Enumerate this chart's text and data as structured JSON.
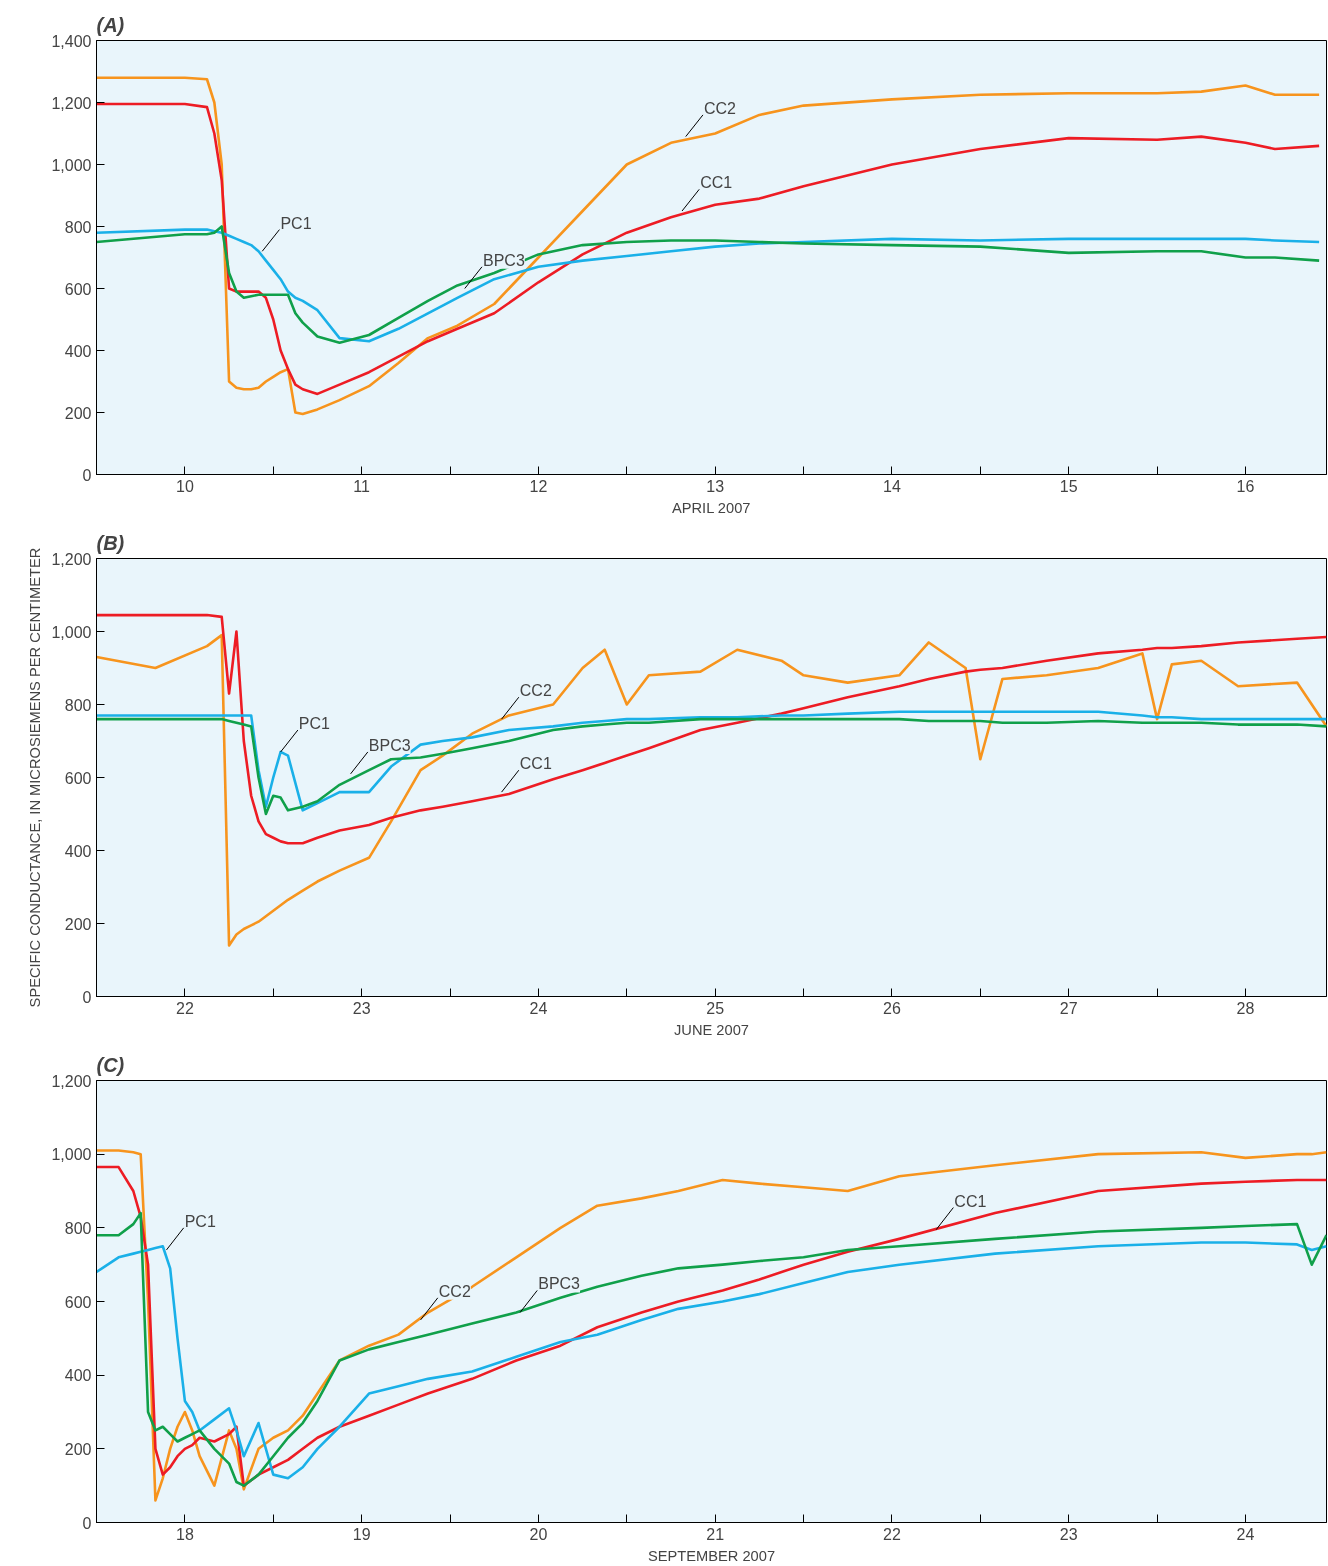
{
  "chart_data": [
    {
      "type": "line",
      "title": "(A)",
      "xlabel": "APRIL 2007",
      "grid": false,
      "xlim": [
        "2007-04-10T00:00",
        "2007-04-16T23:00"
      ],
      "xticks": [
        {
          "value": "2007-04-10T00:00",
          "label": null
        },
        {
          "value": "2007-04-10T12:00",
          "label": "10"
        },
        {
          "value": "2007-04-11T00:00",
          "label": null
        },
        {
          "value": "2007-04-11T12:00",
          "label": "11"
        },
        {
          "value": "2007-04-12T00:00",
          "label": null
        },
        {
          "value": "2007-04-12T12:00",
          "label": "12"
        },
        {
          "value": "2007-04-13T00:00",
          "label": null
        },
        {
          "value": "2007-04-13T12:00",
          "label": "13"
        },
        {
          "value": "2007-04-14T00:00",
          "label": null
        },
        {
          "value": "2007-04-14T12:00",
          "label": "14"
        },
        {
          "value": "2007-04-15T00:00",
          "label": null
        },
        {
          "value": "2007-04-15T12:00",
          "label": "15"
        },
        {
          "value": "2007-04-16T00:00",
          "label": null
        },
        {
          "value": "2007-04-16T12:00",
          "label": "16"
        }
      ],
      "ylim": [
        0,
        1400
      ],
      "yticks": [
        0,
        200,
        400,
        600,
        800,
        {
          "value": 1000,
          "label": "1,000"
        },
        {
          "value": 1200,
          "label": "1,200"
        },
        {
          "value": 1400,
          "label": "1,400"
        }
      ],
      "x": [
        "2007-04-10T00:00",
        "2007-04-10T12:00",
        "2007-04-10T15:00",
        "2007-04-10T16:00",
        "2007-04-10T17:00",
        "2007-04-10T18:00",
        "2007-04-10T19:00",
        "2007-04-10T20:00",
        "2007-04-10T21:00",
        "2007-04-10T22:00",
        "2007-04-10T23:00",
        "2007-04-11T00:00",
        "2007-04-11T01:00",
        "2007-04-11T02:00",
        "2007-04-11T03:00",
        "2007-04-11T04:00",
        "2007-04-11T06:00",
        "2007-04-11T09:00",
        "2007-04-11T13:00",
        "2007-04-11T17:00",
        "2007-04-11T21:00",
        "2007-04-12T01:00",
        "2007-04-12T06:00",
        "2007-04-12T12:00",
        "2007-04-12T18:00",
        "2007-04-13T00:00",
        "2007-04-13T06:00",
        "2007-04-13T12:00",
        "2007-04-13T18:00",
        "2007-04-14T00:00",
        "2007-04-14T12:00",
        "2007-04-15T00:00",
        "2007-04-15T12:00",
        "2007-04-16T00:00",
        "2007-04-16T06:00",
        "2007-04-16T12:00",
        "2007-04-16T16:00",
        "2007-04-16T22:00"
      ],
      "series": [
        {
          "color": "#f7941d",
          "values": [
            1280,
            1280,
            1275,
            1200,
            1000,
            300,
            280,
            275,
            275,
            280,
            300,
            315,
            330,
            340,
            200,
            195,
            210,
            240,
            285,
            360,
            440,
            480,
            550,
            700,
            850,
            1000,
            1070,
            1100,
            1160,
            1190,
            1210,
            1225,
            1230,
            1230,
            1235,
            1255,
            1225,
            1225
          ]
        },
        {
          "color": "#ed1c24",
          "values": [
            1195,
            1195,
            1185,
            1100,
            950,
            600,
            590,
            590,
            590,
            590,
            570,
            500,
            400,
            340,
            290,
            275,
            260,
            290,
            330,
            380,
            430,
            470,
            520,
            620,
            710,
            780,
            830,
            870,
            890,
            930,
            1000,
            1050,
            1085,
            1080,
            1090,
            1070,
            1050,
            1060
          ]
        },
        {
          "color": "#1ab0e8",
          "values": [
            780,
            790,
            790,
            785,
            780,
            770,
            760,
            750,
            740,
            720,
            690,
            660,
            630,
            590,
            570,
            560,
            530,
            440,
            430,
            470,
            520,
            570,
            630,
            670,
            690,
            705,
            720,
            735,
            745,
            750,
            760,
            755,
            760,
            760,
            760,
            760,
            755,
            750
          ]
        },
        {
          "color": "#10a04a",
          "values": [
            750,
            775,
            775,
            780,
            800,
            650,
            590,
            570,
            575,
            580,
            580,
            580,
            580,
            580,
            520,
            490,
            445,
            425,
            450,
            505,
            560,
            610,
            650,
            710,
            740,
            750,
            755,
            755,
            750,
            745,
            740,
            735,
            715,
            720,
            720,
            700,
            700,
            690
          ]
        }
      ],
      "annotations": [
        {
          "text": "PC1",
          "x": "2007-04-10T22:30",
          "y": 720
        },
        {
          "text": "BPC3",
          "x": "2007-04-12T02:00",
          "y": 600
        },
        {
          "text": "CC2",
          "x": "2007-04-13T08:00",
          "y": 1090
        },
        {
          "text": "CC1",
          "x": "2007-04-13T07:30",
          "y": 850
        }
      ]
    },
    {
      "type": "line",
      "title": "(B)",
      "xlabel": "JUNE 2007",
      "ylabel": "SPECIFIC CONDUCTANCE, IN MICROSIEMENS PER CENTIMETER",
      "grid": false,
      "xlim": [
        "2007-06-22T00:00",
        "2007-06-28T23:00"
      ],
      "xticks": [
        {
          "value": "2007-06-22T00:00",
          "label": null
        },
        {
          "value": "2007-06-22T12:00",
          "label": "22"
        },
        {
          "value": "2007-06-23T00:00",
          "label": null
        },
        {
          "value": "2007-06-23T12:00",
          "label": "23"
        },
        {
          "value": "2007-06-24T00:00",
          "label": null
        },
        {
          "value": "2007-06-24T12:00",
          "label": "24"
        },
        {
          "value": "2007-06-25T00:00",
          "label": null
        },
        {
          "value": "2007-06-25T12:00",
          "label": "25"
        },
        {
          "value": "2007-06-26T00:00",
          "label": null
        },
        {
          "value": "2007-06-26T12:00",
          "label": "26"
        },
        {
          "value": "2007-06-27T00:00",
          "label": null
        },
        {
          "value": "2007-06-27T12:00",
          "label": "27"
        },
        {
          "value": "2007-06-28T00:00",
          "label": null
        },
        {
          "value": "2007-06-28T12:00",
          "label": "28"
        }
      ],
      "ylim": [
        0,
        1200
      ],
      "yticks": [
        0,
        200,
        400,
        600,
        800,
        {
          "value": 1000,
          "label": "1,000"
        },
        {
          "value": 1200,
          "label": "1,200"
        }
      ],
      "x": [
        "2007-06-22T00:00",
        "2007-06-22T08:00",
        "2007-06-22T15:00",
        "2007-06-22T17:00",
        "2007-06-22T18:00",
        "2007-06-22T19:00",
        "2007-06-22T20:00",
        "2007-06-22T21:00",
        "2007-06-22T22:00",
        "2007-06-22T23:00",
        "2007-06-23T00:00",
        "2007-06-23T01:00",
        "2007-06-23T02:00",
        "2007-06-23T04:00",
        "2007-06-23T06:00",
        "2007-06-23T09:00",
        "2007-06-23T13:00",
        "2007-06-23T16:00",
        "2007-06-23T20:00",
        "2007-06-23T23:00",
        "2007-06-24T03:00",
        "2007-06-24T08:00",
        "2007-06-24T14:00",
        "2007-06-24T18:00",
        "2007-06-24T21:00",
        "2007-06-25T00:00",
        "2007-06-25T03:00",
        "2007-06-25T10:00",
        "2007-06-25T15:00",
        "2007-06-25T21:00",
        "2007-06-26T00:00",
        "2007-06-26T06:00",
        "2007-06-26T13:00",
        "2007-06-26T17:00",
        "2007-06-26T22:00",
        "2007-06-27T00:00",
        "2007-06-27T03:00",
        "2007-06-27T09:00",
        "2007-06-27T16:00",
        "2007-06-27T22:00",
        "2007-06-28T00:00",
        "2007-06-28T02:00",
        "2007-06-28T06:00",
        "2007-06-28T11:00",
        "2007-06-28T19:00",
        "2007-06-28T23:00"
      ],
      "series": [
        {
          "color": "#f7941d",
          "values": [
            930,
            900,
            960,
            990,
            140,
            170,
            185,
            195,
            205,
            220,
            235,
            250,
            265,
            290,
            315,
            345,
            380,
            480,
            620,
            660,
            720,
            770,
            800,
            900,
            950,
            800,
            880,
            890,
            950,
            920,
            880,
            860,
            880,
            970,
            900,
            650,
            870,
            880,
            900,
            940,
            760,
            910,
            920,
            850,
            860,
            740
          ]
        },
        {
          "color": "#ed1c24",
          "values": [
            1045,
            1045,
            1045,
            1040,
            830,
            1000,
            700,
            550,
            480,
            445,
            435,
            425,
            420,
            420,
            435,
            455,
            470,
            490,
            510,
            520,
            535,
            555,
            595,
            620,
            640,
            660,
            680,
            730,
            750,
            775,
            790,
            820,
            850,
            870,
            890,
            895,
            900,
            920,
            940,
            950,
            955,
            955,
            960,
            970,
            980,
            985
          ]
        },
        {
          "color": "#1ab0e8",
          "values": [
            770,
            770,
            770,
            770,
            770,
            770,
            770,
            770,
            620,
            520,
            600,
            670,
            660,
            510,
            530,
            560,
            560,
            630,
            690,
            700,
            710,
            730,
            740,
            750,
            755,
            760,
            760,
            765,
            765,
            770,
            770,
            775,
            780,
            780,
            780,
            780,
            780,
            780,
            780,
            770,
            765,
            765,
            760,
            760,
            760,
            760
          ]
        },
        {
          "color": "#10a04a",
          "values": [
            760,
            760,
            760,
            760,
            755,
            750,
            745,
            740,
            600,
            500,
            550,
            545,
            510,
            520,
            535,
            580,
            620,
            650,
            655,
            665,
            680,
            700,
            730,
            740,
            745,
            750,
            750,
            760,
            760,
            760,
            760,
            760,
            760,
            755,
            755,
            755,
            750,
            750,
            755,
            750,
            750,
            750,
            750,
            745,
            745,
            740
          ]
        }
      ],
      "annotations": [
        {
          "text": "PC1",
          "x": "2007-06-23T01:00",
          "y": 670
        },
        {
          "text": "BPC3",
          "x": "2007-06-23T10:30",
          "y": 610
        },
        {
          "text": "CC2",
          "x": "2007-06-24T07:00",
          "y": 760
        },
        {
          "text": "CC1",
          "x": "2007-06-24T07:00",
          "y": 560
        }
      ]
    },
    {
      "type": "line",
      "title": "(C)",
      "xlabel": "SEPTEMBER 2007",
      "grid": false,
      "xlim": [
        "2007-09-18T00:00",
        "2007-09-24T23:00"
      ],
      "xticks": [
        {
          "value": "2007-09-18T00:00",
          "label": null
        },
        {
          "value": "2007-09-18T12:00",
          "label": "18"
        },
        {
          "value": "2007-09-19T00:00",
          "label": null
        },
        {
          "value": "2007-09-19T12:00",
          "label": "19"
        },
        {
          "value": "2007-09-20T00:00",
          "label": null
        },
        {
          "value": "2007-09-20T12:00",
          "label": "20"
        },
        {
          "value": "2007-09-21T00:00",
          "label": null
        },
        {
          "value": "2007-09-21T12:00",
          "label": "21"
        },
        {
          "value": "2007-09-22T00:00",
          "label": null
        },
        {
          "value": "2007-09-22T12:00",
          "label": "22"
        },
        {
          "value": "2007-09-23T00:00",
          "label": null
        },
        {
          "value": "2007-09-23T12:00",
          "label": "23"
        },
        {
          "value": "2007-09-24T00:00",
          "label": null
        },
        {
          "value": "2007-09-24T12:00",
          "label": "24"
        }
      ],
      "ylim": [
        0,
        1200
      ],
      "yticks": [
        0,
        200,
        400,
        600,
        800,
        {
          "value": 1000,
          "label": "1,000"
        },
        {
          "value": 1200,
          "label": "1,200"
        }
      ],
      "x": [
        "2007-09-18T00:00",
        "2007-09-18T03:00",
        "2007-09-18T05:00",
        "2007-09-18T06:00",
        "2007-09-18T07:00",
        "2007-09-18T08:00",
        "2007-09-18T09:00",
        "2007-09-18T10:00",
        "2007-09-18T11:00",
        "2007-09-18T12:00",
        "2007-09-18T13:00",
        "2007-09-18T14:00",
        "2007-09-18T16:00",
        "2007-09-18T18:00",
        "2007-09-18T19:00",
        "2007-09-18T20:00",
        "2007-09-18T22:00",
        "2007-09-19T00:00",
        "2007-09-19T02:00",
        "2007-09-19T04:00",
        "2007-09-19T06:00",
        "2007-09-19T09:00",
        "2007-09-19T13:00",
        "2007-09-19T17:00",
        "2007-09-19T21:00",
        "2007-09-20T03:00",
        "2007-09-20T09:00",
        "2007-09-20T15:00",
        "2007-09-20T20:00",
        "2007-09-21T02:00",
        "2007-09-21T07:00",
        "2007-09-21T13:00",
        "2007-09-21T18:00",
        "2007-09-22T00:00",
        "2007-09-22T06:00",
        "2007-09-22T13:00",
        "2007-09-23T02:00",
        "2007-09-23T16:00",
        "2007-09-24T06:00",
        "2007-09-24T12:00",
        "2007-09-24T19:00",
        "2007-09-24T21:00",
        "2007-09-24T23:00"
      ],
      "series": [
        {
          "color": "#f7941d",
          "values": [
            1010,
            1010,
            1005,
            1000,
            600,
            60,
            120,
            200,
            260,
            300,
            250,
            180,
            100,
            250,
            200,
            90,
            200,
            230,
            250,
            290,
            350,
            440,
            480,
            510,
            570,
            640,
            720,
            800,
            860,
            880,
            900,
            930,
            920,
            910,
            900,
            940,
            970,
            1000,
            1005,
            990,
            1000,
            1000,
            1005
          ]
        },
        {
          "color": "#ed1c24",
          "values": [
            965,
            965,
            900,
            830,
            700,
            200,
            130,
            150,
            180,
            200,
            210,
            230,
            220,
            240,
            260,
            100,
            130,
            150,
            170,
            200,
            230,
            260,
            290,
            320,
            350,
            390,
            440,
            480,
            530,
            570,
            600,
            630,
            660,
            700,
            735,
            770,
            840,
            900,
            920,
            925,
            930,
            930,
            930
          ]
        },
        {
          "color": "#1ab0e8",
          "values": [
            680,
            720,
            730,
            735,
            740,
            745,
            750,
            690,
            500,
            330,
            300,
            250,
            280,
            310,
            250,
            180,
            270,
            130,
            120,
            150,
            200,
            260,
            350,
            370,
            390,
            410,
            450,
            490,
            510,
            550,
            580,
            600,
            620,
            650,
            680,
            700,
            730,
            750,
            760,
            760,
            755,
            740,
            750
          ]
        },
        {
          "color": "#10a04a",
          "values": [
            780,
            780,
            810,
            840,
            300,
            250,
            260,
            240,
            220,
            230,
            240,
            250,
            200,
            160,
            110,
            100,
            130,
            180,
            230,
            270,
            330,
            440,
            470,
            490,
            510,
            540,
            570,
            610,
            640,
            670,
            690,
            700,
            710,
            720,
            740,
            750,
            770,
            790,
            800,
            805,
            810,
            700,
            780
          ]
        }
      ],
      "annotations": [
        {
          "text": "PC1",
          "x": "2007-09-18T09:30",
          "y": 740
        },
        {
          "text": "CC2",
          "x": "2007-09-19T20:00",
          "y": 550
        },
        {
          "text": "BPC3",
          "x": "2007-09-20T09:30",
          "y": 570
        },
        {
          "text": "CC1",
          "x": "2007-09-22T18:00",
          "y": 795
        }
      ]
    }
  ]
}
